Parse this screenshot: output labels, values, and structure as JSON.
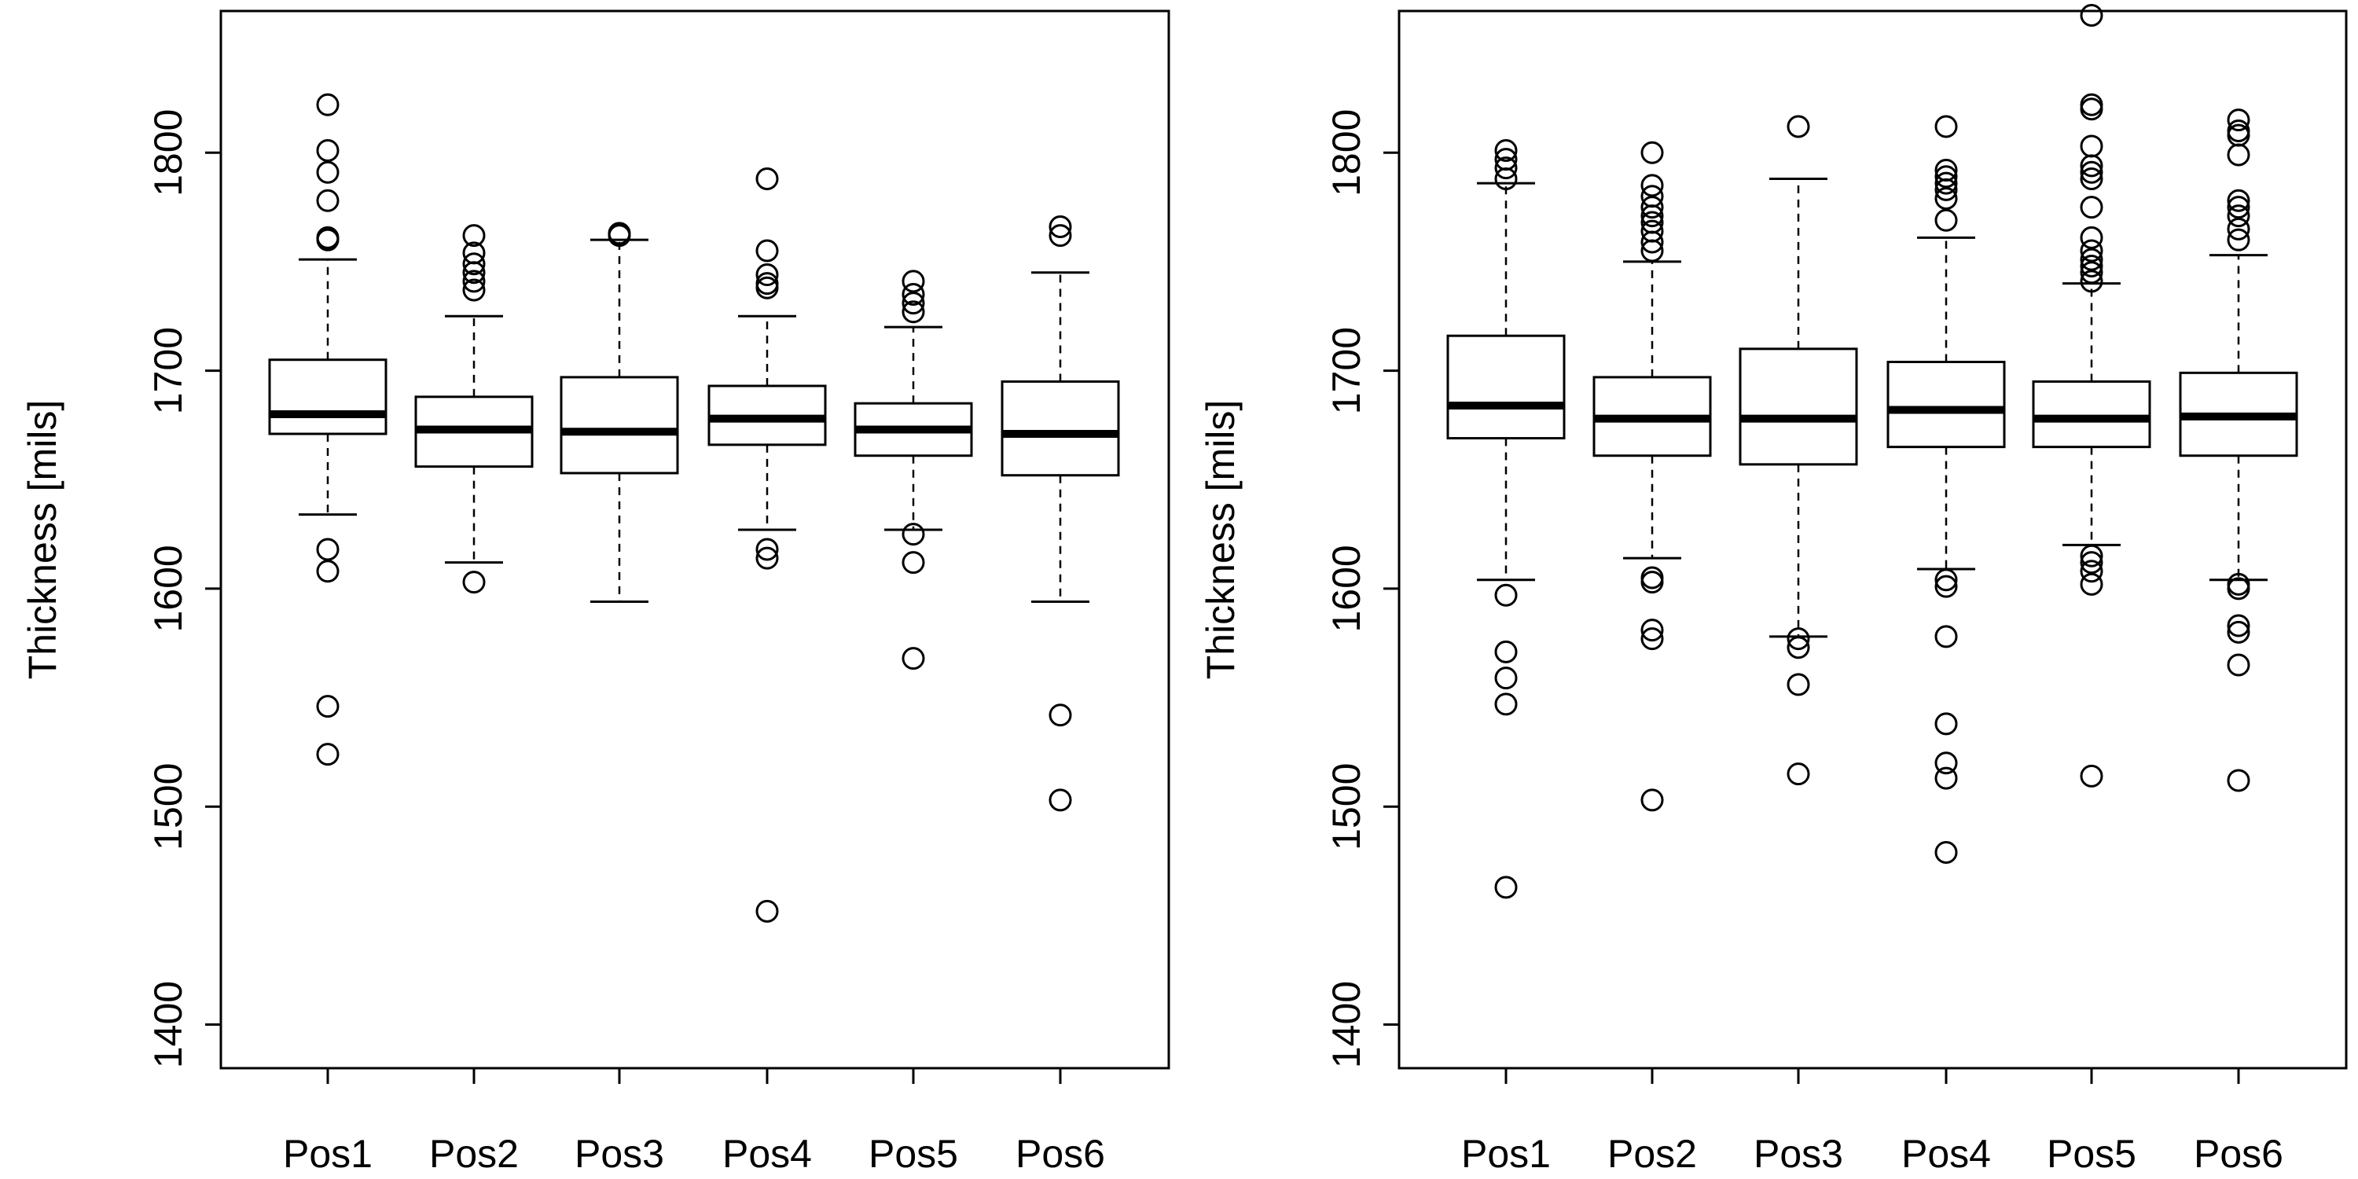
{
  "chart_data": [
    {
      "type": "boxplot",
      "ylabel": "Thickness [mils]",
      "ylim": [
        1380,
        1865
      ],
      "yticks": [
        1400,
        1500,
        1600,
        1700,
        1800
      ],
      "categories": [
        "Pos1",
        "Pos2",
        "Pos3",
        "Pos4",
        "Pos5",
        "Pos6"
      ],
      "boxes": [
        {
          "category": "Pos1",
          "whisker_low": 1634,
          "q1": 1671,
          "median": 1680,
          "q3": 1705,
          "whisker_high": 1751,
          "outliers": [
            1822,
            1801,
            1791,
            1778,
            1761,
            1760,
            1618,
            1608,
            1546,
            1524
          ]
        },
        {
          "category": "Pos2",
          "whisker_low": 1612,
          "q1": 1656,
          "median": 1673,
          "q3": 1688,
          "whisker_high": 1725,
          "outliers": [
            1762,
            1754,
            1749,
            1745,
            1741,
            1737,
            1603
          ]
        },
        {
          "category": "Pos3",
          "whisker_low": 1594,
          "q1": 1653,
          "median": 1672,
          "q3": 1697,
          "whisker_high": 1760,
          "outliers": [
            1763,
            1762
          ]
        },
        {
          "category": "Pos4",
          "whisker_low": 1627,
          "q1": 1666,
          "median": 1678,
          "q3": 1693,
          "whisker_high": 1725,
          "outliers": [
            1788,
            1755,
            1744,
            1740,
            1738,
            1618,
            1614,
            1452
          ]
        },
        {
          "category": "Pos5",
          "whisker_low": 1627,
          "q1": 1661,
          "median": 1673,
          "q3": 1685,
          "whisker_high": 1720,
          "outliers": [
            1741,
            1735,
            1731,
            1727,
            1625,
            1612,
            1568
          ]
        },
        {
          "category": "Pos6",
          "whisker_low": 1594,
          "q1": 1652,
          "median": 1671,
          "q3": 1695,
          "whisker_high": 1745,
          "outliers": [
            1766,
            1762,
            1542,
            1503
          ]
        }
      ]
    },
    {
      "type": "boxplot",
      "ylabel": "Thickness [mils]",
      "ylim": [
        1380,
        1865
      ],
      "yticks": [
        1400,
        1500,
        1600,
        1700,
        1800
      ],
      "categories": [
        "Pos1",
        "Pos2",
        "Pos3",
        "Pos4",
        "Pos5",
        "Pos6"
      ],
      "boxes": [
        {
          "category": "Pos1",
          "whisker_low": 1604,
          "q1": 1669,
          "median": 1684,
          "q3": 1716,
          "whisker_high": 1786,
          "outliers": [
            1801,
            1797,
            1793,
            1788,
            1597,
            1571,
            1559,
            1547,
            1463
          ]
        },
        {
          "category": "Pos2",
          "whisker_low": 1614,
          "q1": 1661,
          "median": 1678,
          "q3": 1697,
          "whisker_high": 1750,
          "outliers": [
            1800,
            1785,
            1780,
            1775,
            1771,
            1768,
            1764,
            1759,
            1755,
            1605,
            1603,
            1581,
            1577,
            1503
          ]
        },
        {
          "category": "Pos3",
          "whisker_low": 1578,
          "q1": 1657,
          "median": 1678,
          "q3": 1710,
          "whisker_high": 1788,
          "outliers": [
            1812,
            1577,
            1573,
            1556,
            1515
          ]
        },
        {
          "category": "Pos4",
          "whisker_low": 1609,
          "q1": 1665,
          "median": 1682,
          "q3": 1704,
          "whisker_high": 1761,
          "outliers": [
            1812,
            1792,
            1789,
            1786,
            1783,
            1779,
            1769,
            1604,
            1601,
            1578,
            1538,
            1520,
            1513,
            1479
          ]
        },
        {
          "category": "Pos5",
          "whisker_low": 1620,
          "q1": 1665,
          "median": 1678,
          "q3": 1695,
          "whisker_high": 1740,
          "outliers": [
            1863,
            1822,
            1820,
            1803,
            1794,
            1791,
            1788,
            1775,
            1761,
            1755,
            1751,
            1748,
            1745,
            1741,
            1615,
            1612,
            1608,
            1602,
            1514
          ]
        },
        {
          "category": "Pos6",
          "whisker_low": 1604,
          "q1": 1661,
          "median": 1679,
          "q3": 1699,
          "whisker_high": 1753,
          "outliers": [
            1815,
            1810,
            1808,
            1799,
            1778,
            1775,
            1771,
            1765,
            1760,
            1602,
            1600,
            1583,
            1580,
            1565,
            1512
          ]
        }
      ]
    }
  ]
}
